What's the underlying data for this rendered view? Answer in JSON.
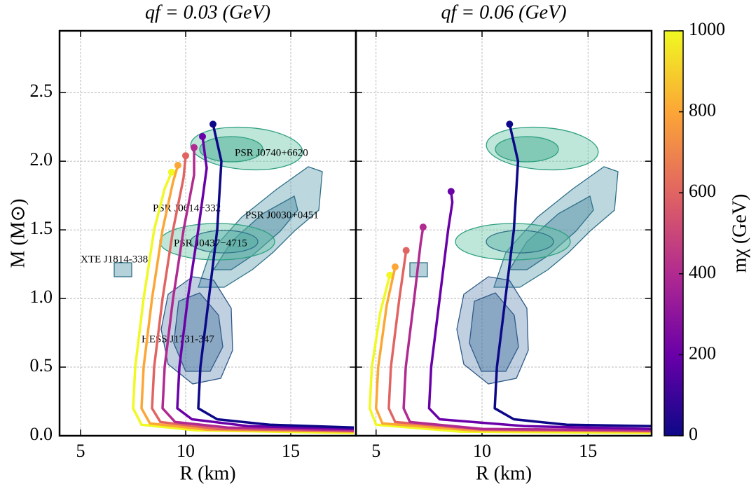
{
  "chart_data": [
    {
      "type": "line",
      "title": "qf = 0.03 (GeV)",
      "xlabel": "R (km)",
      "ylabel": "M (M⊙)",
      "xlim": [
        4.0,
        18.1
      ],
      "ylim": [
        0,
        2.95
      ],
      "xticks": [
        5,
        10,
        15
      ],
      "yticks": [
        {
          "value": 0,
          "label": "0.0"
        },
        0.5,
        {
          "value": 1,
          "label": "1.0"
        },
        1.5,
        {
          "value": 2,
          "label": "2.0"
        },
        2.5
      ],
      "grid": true,
      "annotations": [
        "PSR J0740+6620",
        "PSR J0614−332",
        "PSR J0030+0451",
        "PSR J0437−4715",
        "XTE J1814-338",
        "HESS J1731-347"
      ],
      "series": [
        {
          "color": "#f0f921",
          "x": [
            18,
            10.5,
            7.9,
            7.5,
            7.6,
            8.0,
            8.5,
            9.0,
            9.33
          ],
          "values": [
            0.02,
            0.04,
            0.08,
            0.2,
            0.5,
            1.0,
            1.5,
            1.8,
            1.92
          ]
        },
        {
          "color": "#fca636",
          "x": [
            18,
            11,
            8.3,
            7.9,
            8.0,
            8.4,
            8.9,
            9.4,
            9.63
          ],
          "values": [
            0.03,
            0.045,
            0.09,
            0.2,
            0.5,
            1.0,
            1.5,
            1.85,
            1.97
          ]
        },
        {
          "color": "#e16462",
          "x": [
            18,
            11.5,
            8.8,
            8.4,
            8.5,
            8.9,
            9.4,
            9.9,
            10.0
          ],
          "values": [
            0.035,
            0.05,
            0.1,
            0.2,
            0.5,
            1.0,
            1.5,
            1.88,
            2.04
          ]
        },
        {
          "color": "#b12a90",
          "x": [
            18,
            12,
            9.5,
            8.9,
            9.0,
            9.4,
            9.9,
            10.4,
            10.4
          ],
          "values": [
            0.04,
            0.06,
            0.1,
            0.2,
            0.5,
            1.0,
            1.5,
            1.9,
            2.1
          ]
        },
        {
          "color": "#6a00a8",
          "x": [
            18,
            13,
            10.3,
            9.6,
            9.7,
            10.1,
            10.6,
            11.0,
            10.8
          ],
          "values": [
            0.05,
            0.07,
            0.12,
            0.2,
            0.5,
            1.0,
            1.5,
            1.95,
            2.18
          ]
        },
        {
          "color": "#0d0887",
          "x": [
            18,
            14,
            11.5,
            10.6,
            10.7,
            11.1,
            11.5,
            11.7,
            11.3
          ],
          "values": [
            0.06,
            0.08,
            0.12,
            0.2,
            0.5,
            1.0,
            1.5,
            2.0,
            2.27
          ]
        }
      ]
    },
    {
      "type": "line",
      "title": "qf = 0.06 (GeV)",
      "xlabel": "R (km)",
      "xlim": [
        4.05,
        18.0
      ],
      "ylim": [
        0,
        2.95
      ],
      "xticks": [
        5,
        10,
        15
      ],
      "yticks": [
        0,
        0.5,
        1,
        1.5,
        2,
        2.5
      ],
      "grid": true,
      "series": [
        {
          "color": "#f0f921",
          "x": [
            18,
            9,
            5.0,
            4.7,
            4.8,
            5.2,
            5.65
          ],
          "values": [
            0.02,
            0.03,
            0.08,
            0.2,
            0.5,
            0.9,
            1.17
          ]
        },
        {
          "color": "#fca636",
          "x": [
            18,
            9.5,
            5.3,
            5.0,
            5.1,
            5.5,
            5.9
          ],
          "values": [
            0.03,
            0.04,
            0.09,
            0.2,
            0.5,
            0.95,
            1.23
          ]
        },
        {
          "color": "#e16462",
          "x": [
            18,
            10,
            5.9,
            5.6,
            5.7,
            6.1,
            6.42
          ],
          "values": [
            0.035,
            0.045,
            0.1,
            0.2,
            0.5,
            1.0,
            1.35
          ]
        },
        {
          "color": "#b12a90",
          "x": [
            18,
            10,
            6.6,
            6.3,
            6.4,
            6.8,
            7.1,
            7.22
          ],
          "values": [
            0.04,
            0.05,
            0.1,
            0.2,
            0.5,
            1.0,
            1.4,
            1.52
          ]
        },
        {
          "color": "#6a00a8",
          "x": [
            18,
            12,
            8.0,
            7.5,
            7.6,
            8.0,
            8.4,
            8.6,
            8.54
          ],
          "values": [
            0.05,
            0.07,
            0.12,
            0.2,
            0.5,
            1.0,
            1.5,
            1.7,
            1.78
          ]
        },
        {
          "color": "#0d0887",
          "x": [
            18,
            14,
            11.5,
            10.6,
            10.7,
            11.1,
            11.5,
            11.7,
            11.3
          ],
          "values": [
            0.07,
            0.08,
            0.12,
            0.2,
            0.5,
            1.0,
            1.5,
            2.0,
            2.27
          ]
        }
      ]
    }
  ],
  "colorbar": {
    "label": "mχ (GeV)",
    "lim": [
      0,
      1000
    ],
    "ticks": [
      0,
      200,
      400,
      600,
      800,
      1000
    ],
    "colors": [
      "#0d0887",
      "#6a00a8",
      "#b12a90",
      "#e16462",
      "#fca636",
      "#f0f921"
    ]
  }
}
